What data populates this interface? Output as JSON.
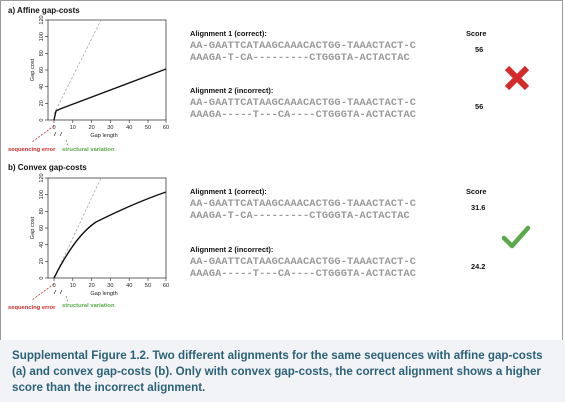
{
  "panel_a": {
    "title": "a) Affine gap-costs",
    "chart": {
      "xlabel": "Gap length",
      "ylabel": "Gap cost",
      "xticks": [
        "0",
        "10",
        "20",
        "30",
        "40",
        "50",
        "60"
      ],
      "yticks": [
        "0",
        "20",
        "40",
        "60",
        "80",
        "100",
        "120"
      ]
    },
    "ann_error": "sequencing error",
    "ann_struct": "structural variation",
    "alignment1": {
      "header": "Alignment 1 (correct):",
      "line1": "AA-GAATTCATAAGCAAACACTGG-TAAACTACT-C",
      "line2": "AAAGA-T-CA---------CTGGGTA-ACTACTAC",
      "score": "56"
    },
    "alignment2": {
      "header": "Alignment 2 (incorrect):",
      "line1": "AA-GAATTCATAAGCAAACACTGG-TAAACTACT-C",
      "line2": "AAAGA-----T---CA----CTGGGTA-ACTACTAC",
      "score": "56"
    },
    "score_header": "Score",
    "verdict_icon": "red-cross-icon"
  },
  "panel_b": {
    "title": "b) Convex gap-costs",
    "chart": {
      "xlabel": "Gap length",
      "ylabel": "Gap cost",
      "xticks": [
        "0",
        "10",
        "20",
        "30",
        "40",
        "50",
        "60"
      ],
      "yticks": [
        "0",
        "20",
        "40",
        "60",
        "80",
        "100",
        "120"
      ]
    },
    "ann_error": "sequencing error",
    "ann_struct": "structural variation",
    "alignment1": {
      "header": "Alignment 1 (correct):",
      "line1": "AA-GAATTCATAAGCAAACACTGG-TAAACTACT-C",
      "line2": "AAAGA-T-CA---------CTGGGTA-ACTACTAC",
      "score": "31.6"
    },
    "alignment2": {
      "header": "Alignment 2 (incorrect):",
      "line1": "AA-GAATTCATAAGCAAACACTGG-TAAACTACT-C",
      "line2": "AAAGA-----T---CA----CTGGGTA-ACTACTAC",
      "score": "24.2"
    },
    "score_header": "Score",
    "verdict_icon": "green-check-icon"
  },
  "caption": "Supplemental Figure 1.2. Two different alignments for the same sequences with affine gap-costs (a) and convex gap-costs (b). Only with convex gap-costs, the correct alignment shows a higher score than the incorrect alignment.",
  "colors": {
    "red": "#cc2a2a",
    "green": "#5aa84a",
    "caption": "#2c6178",
    "sequence": "#9a9a9a"
  }
}
